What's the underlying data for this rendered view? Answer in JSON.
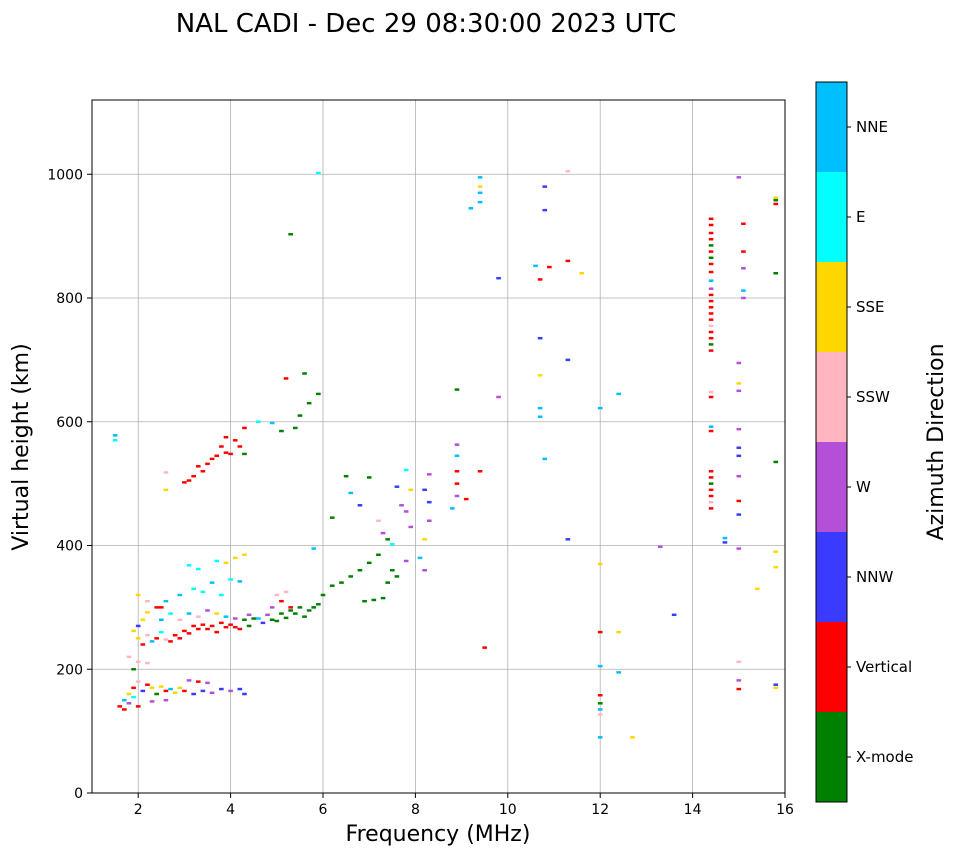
{
  "chart_data": {
    "type": "scatter",
    "title": "NAL CADI - Dec 29 08:30:00 2023 UTC",
    "xlabel": "Frequency (MHz)",
    "ylabel": "Virtual height (km)",
    "xlim": [
      1,
      16
    ],
    "ylim": [
      0,
      1120
    ],
    "xticks": [
      2,
      4,
      6,
      8,
      10,
      12,
      14,
      16
    ],
    "yticks": [
      0,
      200,
      400,
      600,
      800,
      1000
    ],
    "grid": true,
    "colorbar": {
      "title": "Azimuth Direction",
      "categories": [
        {
          "label": "X-mode",
          "color": "#008000"
        },
        {
          "label": "Vertical",
          "color": "#ff0000"
        },
        {
          "label": "NNW",
          "color": "#3b3bff"
        },
        {
          "label": "W",
          "color": "#b450d8"
        },
        {
          "label": "SSW",
          "color": "#ffb6c1"
        },
        {
          "label": "SSE",
          "color": "#ffd700"
        },
        {
          "label": "E",
          "color": "#00ffff"
        },
        {
          "label": "NNE",
          "color": "#00bfff"
        }
      ]
    },
    "mark_size": {
      "freq_width": 0.1,
      "height_thickness": 4
    },
    "points_x_y_category": [
      [
        1.5,
        578,
        "NNE"
      ],
      [
        1.5,
        570,
        "E"
      ],
      [
        1.6,
        140,
        "Vertical"
      ],
      [
        1.7,
        150,
        "NNE"
      ],
      [
        1.8,
        160,
        "SSE"
      ],
      [
        1.9,
        170,
        "Vertical"
      ],
      [
        2.0,
        180,
        "SSW"
      ],
      [
        1.7,
        135,
        "Vertical"
      ],
      [
        1.8,
        145,
        "W"
      ],
      [
        1.9,
        155,
        "E"
      ],
      [
        2.0,
        140,
        "Vertical"
      ],
      [
        2.1,
        165,
        "NNW"
      ],
      [
        2.2,
        175,
        "Vertical"
      ],
      [
        2.3,
        170,
        "SSE"
      ],
      [
        2.4,
        160,
        "X-mode"
      ],
      [
        2.5,
        172,
        "SSE"
      ],
      [
        2.6,
        165,
        "Vertical"
      ],
      [
        2.7,
        168,
        "NNE"
      ],
      [
        2.8,
        162,
        "SSE"
      ],
      [
        2.9,
        170,
        "SSE"
      ],
      [
        3.0,
        165,
        "Vertical"
      ],
      [
        3.1,
        182,
        "W"
      ],
      [
        3.2,
        160,
        "NNW"
      ],
      [
        3.4,
        165,
        "NNW"
      ],
      [
        3.6,
        162,
        "W"
      ],
      [
        3.8,
        168,
        "NNW"
      ],
      [
        4.0,
        165,
        "W"
      ],
      [
        4.2,
        168,
        "NNW"
      ],
      [
        4.3,
        160,
        "NNW"
      ],
      [
        2.3,
        148,
        "W"
      ],
      [
        2.6,
        150,
        "W"
      ],
      [
        3.3,
        180,
        "Vertical"
      ],
      [
        3.5,
        178,
        "W"
      ],
      [
        1.8,
        220,
        "SSW"
      ],
      [
        2.0,
        212,
        "SSW"
      ],
      [
        2.2,
        210,
        "SSW"
      ],
      [
        1.9,
        200,
        "X-mode"
      ],
      [
        1.9,
        262,
        "SSE"
      ],
      [
        2.0,
        250,
        "SSE"
      ],
      [
        2.1,
        240,
        "Vertical"
      ],
      [
        2.2,
        255,
        "SSW"
      ],
      [
        2.3,
        245,
        "NNE"
      ],
      [
        2.4,
        250,
        "Vertical"
      ],
      [
        2.5,
        260,
        "E"
      ],
      [
        2.6,
        248,
        "SSW"
      ],
      [
        2.7,
        245,
        "Vertical"
      ],
      [
        2.8,
        255,
        "Vertical"
      ],
      [
        2.9,
        250,
        "Vertical"
      ],
      [
        3.0,
        262,
        "Vertical"
      ],
      [
        3.1,
        258,
        "Vertical"
      ],
      [
        3.2,
        270,
        "Vertical"
      ],
      [
        3.3,
        265,
        "Vertical"
      ],
      [
        3.4,
        272,
        "Vertical"
      ],
      [
        3.5,
        265,
        "Vertical"
      ],
      [
        3.6,
        270,
        "Vertical"
      ],
      [
        3.7,
        260,
        "Vertical"
      ],
      [
        3.8,
        275,
        "Vertical"
      ],
      [
        3.9,
        268,
        "Vertical"
      ],
      [
        4.0,
        272,
        "Vertical"
      ],
      [
        4.1,
        268,
        "Vertical"
      ],
      [
        4.2,
        265,
        "Vertical"
      ],
      [
        2.0,
        270,
        "NNW"
      ],
      [
        2.1,
        280,
        "SSE"
      ],
      [
        2.2,
        292,
        "SSE"
      ],
      [
        2.4,
        300,
        "Vertical"
      ],
      [
        2.5,
        280,
        "NNE"
      ],
      [
        2.7,
        290,
        "E"
      ],
      [
        2.9,
        280,
        "SSW"
      ],
      [
        3.1,
        290,
        "NNE"
      ],
      [
        3.3,
        285,
        "SSW"
      ],
      [
        3.5,
        295,
        "W"
      ],
      [
        3.7,
        290,
        "SSE"
      ],
      [
        3.9,
        285,
        "NNE"
      ],
      [
        4.1,
        282,
        "W"
      ],
      [
        4.3,
        280,
        "X-mode"
      ],
      [
        4.4,
        288,
        "W"
      ],
      [
        4.6,
        282,
        "NNE"
      ],
      [
        3.2,
        330,
        "E"
      ],
      [
        3.4,
        325,
        "E"
      ],
      [
        3.6,
        340,
        "NNE"
      ],
      [
        3.8,
        320,
        "E"
      ],
      [
        4.0,
        345,
        "E"
      ],
      [
        4.2,
        342,
        "NNE"
      ],
      [
        3.1,
        368,
        "E"
      ],
      [
        3.3,
        362,
        "E"
      ],
      [
        3.7,
        375,
        "E"
      ],
      [
        3.9,
        372,
        "SSE"
      ],
      [
        4.1,
        380,
        "SSE"
      ],
      [
        4.3,
        385,
        "SSE"
      ],
      [
        2.0,
        320,
        "SSE"
      ],
      [
        2.2,
        310,
        "SSW"
      ],
      [
        2.6,
        310,
        "NNE"
      ],
      [
        2.9,
        320,
        "NNE"
      ],
      [
        2.5,
        300,
        "Vertical"
      ],
      [
        4.4,
        270,
        "X-mode"
      ],
      [
        4.5,
        282,
        "X-mode"
      ],
      [
        4.7,
        275,
        "NNW"
      ],
      [
        4.8,
        288,
        "W"
      ],
      [
        4.9,
        280,
        "X-mode"
      ],
      [
        5.0,
        278,
        "X-mode"
      ],
      [
        5.1,
        290,
        "X-mode"
      ],
      [
        5.2,
        283,
        "X-mode"
      ],
      [
        5.3,
        295,
        "X-mode"
      ],
      [
        5.4,
        290,
        "X-mode"
      ],
      [
        5.5,
        300,
        "X-mode"
      ],
      [
        5.6,
        285,
        "X-mode"
      ],
      [
        5.7,
        295,
        "X-mode"
      ],
      [
        5.8,
        300,
        "X-mode"
      ],
      [
        5.9,
        305,
        "X-mode"
      ],
      [
        6.0,
        320,
        "X-mode"
      ],
      [
        6.2,
        335,
        "X-mode"
      ],
      [
        6.4,
        340,
        "X-mode"
      ],
      [
        6.6,
        350,
        "X-mode"
      ],
      [
        6.8,
        360,
        "X-mode"
      ],
      [
        7.0,
        372,
        "X-mode"
      ],
      [
        7.2,
        385,
        "X-mode"
      ],
      [
        7.4,
        340,
        "X-mode"
      ],
      [
        7.6,
        350,
        "X-mode"
      ],
      [
        7.3,
        315,
        "X-mode"
      ],
      [
        7.1,
        312,
        "X-mode"
      ],
      [
        6.9,
        310,
        "X-mode"
      ],
      [
        5.1,
        310,
        "Vertical"
      ],
      [
        5.3,
        300,
        "Vertical"
      ],
      [
        4.9,
        300,
        "W"
      ],
      [
        5.0,
        320,
        "SSW"
      ],
      [
        5.2,
        325,
        "SSW"
      ],
      [
        5.8,
        395,
        "NNE"
      ],
      [
        6.2,
        445,
        "X-mode"
      ],
      [
        6.5,
        512,
        "X-mode"
      ],
      [
        6.6,
        485,
        "NNE"
      ],
      [
        6.8,
        465,
        "NNW"
      ],
      [
        7.0,
        510,
        "X-mode"
      ],
      [
        7.2,
        440,
        "SSW"
      ],
      [
        7.3,
        420,
        "W"
      ],
      [
        7.4,
        410,
        "X-mode"
      ],
      [
        7.5,
        402,
        "E"
      ],
      [
        7.6,
        495,
        "NNW"
      ],
      [
        7.7,
        465,
        "W"
      ],
      [
        7.8,
        522,
        "E"
      ],
      [
        7.8,
        455,
        "W"
      ],
      [
        7.9,
        490,
        "SSE"
      ],
      [
        7.9,
        430,
        "W"
      ],
      [
        8.2,
        360,
        "W"
      ],
      [
        8.2,
        410,
        "SSE"
      ],
      [
        8.2,
        490,
        "NNW"
      ],
      [
        8.3,
        440,
        "W"
      ],
      [
        8.3,
        470,
        "NNW"
      ],
      [
        8.3,
        515,
        "W"
      ],
      [
        8.1,
        380,
        "NNE"
      ],
      [
        7.8,
        375,
        "W"
      ],
      [
        7.5,
        360,
        "X-mode"
      ],
      [
        8.9,
        563,
        "W"
      ],
      [
        8.9,
        545,
        "NNE"
      ],
      [
        8.9,
        520,
        "Vertical"
      ],
      [
        8.9,
        500,
        "Vertical"
      ],
      [
        8.9,
        480,
        "W"
      ],
      [
        8.8,
        460,
        "NNE"
      ],
      [
        8.9,
        652,
        "X-mode"
      ],
      [
        9.4,
        520,
        "Vertical"
      ],
      [
        9.5,
        235,
        "Vertical"
      ],
      [
        9.1,
        475,
        "Vertical"
      ],
      [
        9.2,
        945,
        "NNE"
      ],
      [
        9.4,
        995,
        "NNE"
      ],
      [
        9.4,
        980,
        "SSE"
      ],
      [
        9.4,
        970,
        "NNE"
      ],
      [
        9.4,
        955,
        "NNE"
      ],
      [
        9.8,
        832,
        "NNW"
      ],
      [
        9.8,
        640,
        "W"
      ],
      [
        10.6,
        852,
        "NNE"
      ],
      [
        10.7,
        830,
        "Vertical"
      ],
      [
        10.8,
        980,
        "NNW"
      ],
      [
        10.8,
        942,
        "NNW"
      ],
      [
        10.9,
        850,
        "Vertical"
      ],
      [
        10.7,
        735,
        "NNW"
      ],
      [
        10.7,
        675,
        "SSE"
      ],
      [
        10.7,
        622,
        "NNE"
      ],
      [
        10.7,
        608,
        "NNE"
      ],
      [
        10.8,
        540,
        "NNE"
      ],
      [
        11.3,
        860,
        "Vertical"
      ],
      [
        11.3,
        700,
        "NNW"
      ],
      [
        11.3,
        410,
        "NNW"
      ],
      [
        11.3,
        1005,
        "SSW"
      ],
      [
        11.6,
        840,
        "SSE"
      ],
      [
        12.0,
        622,
        "NNE"
      ],
      [
        12.0,
        370,
        "SSE"
      ],
      [
        12.0,
        260,
        "Vertical"
      ],
      [
        12.0,
        205,
        "NNE"
      ],
      [
        12.0,
        158,
        "Vertical"
      ],
      [
        12.0,
        145,
        "X-mode"
      ],
      [
        12.0,
        135,
        "NNE"
      ],
      [
        12.0,
        127,
        "SSW"
      ],
      [
        12.0,
        90,
        "NNE"
      ],
      [
        12.4,
        645,
        "NNE"
      ],
      [
        12.4,
        260,
        "SSE"
      ],
      [
        12.4,
        195,
        "NNE"
      ],
      [
        12.7,
        90,
        "SSE"
      ],
      [
        13.3,
        398,
        "W"
      ],
      [
        13.6,
        288,
        "NNW"
      ],
      [
        14.4,
        928,
        "Vertical"
      ],
      [
        14.4,
        918,
        "Vertical"
      ],
      [
        14.4,
        905,
        "Vertical"
      ],
      [
        14.4,
        895,
        "Vertical"
      ],
      [
        14.4,
        885,
        "X-mode"
      ],
      [
        14.4,
        875,
        "Vertical"
      ],
      [
        14.4,
        865,
        "X-mode"
      ],
      [
        14.4,
        855,
        "Vertical"
      ],
      [
        14.4,
        842,
        "Vertical"
      ],
      [
        14.4,
        828,
        "NNE"
      ],
      [
        14.4,
        815,
        "W"
      ],
      [
        14.4,
        805,
        "Vertical"
      ],
      [
        14.4,
        795,
        "Vertical"
      ],
      [
        14.4,
        785,
        "Vertical"
      ],
      [
        14.4,
        775,
        "Vertical"
      ],
      [
        14.4,
        765,
        "Vertical"
      ],
      [
        14.4,
        755,
        "SSW"
      ],
      [
        14.4,
        745,
        "Vertical"
      ],
      [
        14.4,
        735,
        "Vertical"
      ],
      [
        14.4,
        725,
        "X-mode"
      ],
      [
        14.4,
        715,
        "Vertical"
      ],
      [
        14.4,
        648,
        "SSW"
      ],
      [
        14.4,
        640,
        "Vertical"
      ],
      [
        14.4,
        592,
        "NNE"
      ],
      [
        14.4,
        585,
        "Vertical"
      ],
      [
        14.4,
        520,
        "Vertical"
      ],
      [
        14.4,
        510,
        "Vertical"
      ],
      [
        14.4,
        500,
        "X-mode"
      ],
      [
        14.4,
        490,
        "Vertical"
      ],
      [
        14.4,
        480,
        "Vertical"
      ],
      [
        14.4,
        470,
        "SSW"
      ],
      [
        14.4,
        460,
        "Vertical"
      ],
      [
        14.7,
        412,
        "NNE"
      ],
      [
        14.7,
        405,
        "NNW"
      ],
      [
        15.0,
        995,
        "W"
      ],
      [
        15.1,
        920,
        "Vertical"
      ],
      [
        15.1,
        875,
        "Vertical"
      ],
      [
        15.1,
        848,
        "W"
      ],
      [
        15.1,
        812,
        "NNE"
      ],
      [
        15.1,
        800,
        "W"
      ],
      [
        15.0,
        695,
        "W"
      ],
      [
        15.0,
        662,
        "SSE"
      ],
      [
        15.0,
        650,
        "W"
      ],
      [
        15.0,
        588,
        "W"
      ],
      [
        15.0,
        558,
        "NNW"
      ],
      [
        15.0,
        545,
        "NNW"
      ],
      [
        15.0,
        512,
        "W"
      ],
      [
        15.0,
        472,
        "Vertical"
      ],
      [
        15.0,
        450,
        "NNW"
      ],
      [
        15.0,
        395,
        "W"
      ],
      [
        15.0,
        212,
        "SSW"
      ],
      [
        15.0,
        182,
        "W"
      ],
      [
        15.0,
        168,
        "Vertical"
      ],
      [
        15.4,
        330,
        "SSE"
      ],
      [
        15.8,
        962,
        "SSE"
      ],
      [
        15.8,
        958,
        "X-mode"
      ],
      [
        15.8,
        952,
        "Vertical"
      ],
      [
        15.8,
        840,
        "X-mode"
      ],
      [
        15.8,
        535,
        "X-mode"
      ],
      [
        15.8,
        390,
        "SSE"
      ],
      [
        15.8,
        365,
        "SSE"
      ],
      [
        15.8,
        175,
        "NNW"
      ],
      [
        15.8,
        170,
        "SSE"
      ],
      [
        5.2,
        670,
        "Vertical"
      ],
      [
        5.3,
        903,
        "X-mode"
      ],
      [
        5.6,
        678,
        "X-mode"
      ],
      [
        5.9,
        645,
        "X-mode"
      ],
      [
        5.9,
        1002,
        "E"
      ],
      [
        5.7,
        630,
        "X-mode"
      ],
      [
        5.5,
        610,
        "X-mode"
      ],
      [
        5.4,
        590,
        "X-mode"
      ],
      [
        5.1,
        585,
        "X-mode"
      ],
      [
        4.9,
        598,
        "NNE"
      ],
      [
        4.6,
        600,
        "E"
      ],
      [
        4.3,
        590,
        "Vertical"
      ],
      [
        4.2,
        560,
        "Vertical"
      ],
      [
        4.0,
        548,
        "Vertical"
      ],
      [
        3.9,
        550,
        "Vertical"
      ],
      [
        3.8,
        560,
        "Vertical"
      ],
      [
        3.7,
        545,
        "Vertical"
      ],
      [
        3.6,
        540,
        "Vertical"
      ],
      [
        3.5,
        532,
        "Vertical"
      ],
      [
        3.4,
        520,
        "Vertical"
      ],
      [
        3.3,
        528,
        "Vertical"
      ],
      [
        3.2,
        512,
        "Vertical"
      ],
      [
        3.1,
        505,
        "Vertical"
      ],
      [
        3.0,
        502,
        "Vertical"
      ],
      [
        2.6,
        490,
        "SSE"
      ],
      [
        2.6,
        518,
        "SSW"
      ],
      [
        4.3,
        548,
        "X-mode"
      ],
      [
        4.1,
        570,
        "Vertical"
      ],
      [
        3.9,
        575,
        "Vertical"
      ]
    ]
  }
}
